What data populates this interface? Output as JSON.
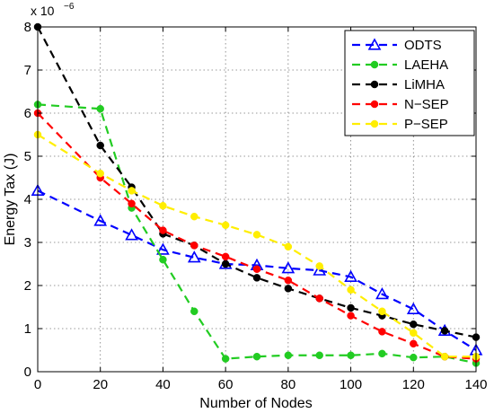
{
  "chart_data": {
    "type": "line",
    "xlabel": "Number of Nodes",
    "ylabel": "Energy Tax (J)",
    "exponent_base": "x 10",
    "exponent_power": "−6",
    "xlim": [
      0,
      140
    ],
    "ylim": [
      0,
      8
    ],
    "xticks": [
      0,
      20,
      40,
      60,
      80,
      100,
      120,
      140
    ],
    "yticks": [
      0,
      1,
      2,
      3,
      4,
      5,
      6,
      7,
      8
    ],
    "grid": true,
    "legend_position": "top-right",
    "series": [
      {
        "name": "ODTS",
        "color": "#0000ff",
        "marker": "triangle",
        "x": [
          0,
          20,
          30,
          40,
          50,
          60,
          70,
          80,
          90,
          100,
          110,
          120,
          130,
          140
        ],
        "y": [
          4.2,
          3.5,
          3.17,
          2.83,
          2.65,
          2.5,
          2.47,
          2.4,
          2.35,
          2.2,
          1.8,
          1.45,
          0.95,
          0.5
        ]
      },
      {
        "name": "LAEHA",
        "color": "#22cc22",
        "marker": "dot",
        "x": [
          0,
          20,
          30,
          40,
          50,
          60,
          70,
          80,
          90,
          100,
          110,
          120,
          130,
          140
        ],
        "y": [
          6.2,
          6.1,
          3.8,
          2.6,
          1.4,
          0.3,
          0.35,
          0.38,
          0.38,
          0.38,
          0.42,
          0.33,
          0.35,
          0.2
        ]
      },
      {
        "name": "LiMHA",
        "color": "#000000",
        "marker": "dot",
        "x": [
          0,
          20,
          30,
          40,
          50,
          60,
          70,
          80,
          90,
          100,
          110,
          120,
          130,
          140
        ],
        "y": [
          8.0,
          5.25,
          4.28,
          3.2,
          2.93,
          2.5,
          2.18,
          1.93,
          1.7,
          1.48,
          1.3,
          1.1,
          0.95,
          0.8
        ]
      },
      {
        "name": "N−SEP",
        "color": "#ff0000",
        "marker": "dot",
        "x": [
          0,
          20,
          30,
          40,
          50,
          60,
          70,
          80,
          90,
          100,
          110,
          120,
          130,
          140
        ],
        "y": [
          6.0,
          4.5,
          3.9,
          3.28,
          2.93,
          2.67,
          2.38,
          2.12,
          1.7,
          1.3,
          0.93,
          0.65,
          0.35,
          0.3
        ]
      },
      {
        "name": "P−SEP",
        "color": "#ffee00",
        "marker": "dot",
        "x": [
          0,
          20,
          30,
          40,
          50,
          60,
          70,
          80,
          90,
          100,
          110,
          120,
          130,
          140
        ],
        "y": [
          5.5,
          4.6,
          4.2,
          3.85,
          3.6,
          3.4,
          3.18,
          2.9,
          2.45,
          1.9,
          1.4,
          0.9,
          0.35,
          0.35
        ]
      }
    ]
  }
}
